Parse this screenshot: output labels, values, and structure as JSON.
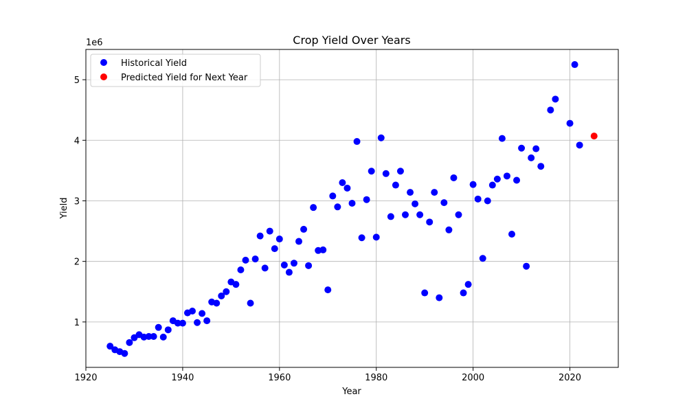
{
  "chart_data": {
    "type": "scatter",
    "title": "Crop Yield Over Years",
    "xlabel": "Year",
    "ylabel": "Yield",
    "y_scale_label": "1e6",
    "xlim": [
      1920,
      2030
    ],
    "ylim": [
      0.25,
      5.5
    ],
    "x_ticks": [
      1920,
      1940,
      1960,
      1980,
      2000,
      2020
    ],
    "y_ticks": [
      1,
      2,
      3,
      4,
      5
    ],
    "grid": true,
    "legend_position": "top-left",
    "series": [
      {
        "name": "Historical Yield",
        "color": "#0000ff",
        "points": [
          [
            1925,
            0.6
          ],
          [
            1926,
            0.54
          ],
          [
            1927,
            0.51
          ],
          [
            1928,
            0.48
          ],
          [
            1929,
            0.66
          ],
          [
            1930,
            0.74
          ],
          [
            1931,
            0.79
          ],
          [
            1932,
            0.75
          ],
          [
            1933,
            0.76
          ],
          [
            1934,
            0.76
          ],
          [
            1935,
            0.91
          ],
          [
            1936,
            0.75
          ],
          [
            1937,
            0.87
          ],
          [
            1938,
            1.02
          ],
          [
            1939,
            0.98
          ],
          [
            1940,
            0.98
          ],
          [
            1941,
            1.15
          ],
          [
            1942,
            1.18
          ],
          [
            1943,
            0.99
          ],
          [
            1944,
            1.14
          ],
          [
            1945,
            1.02
          ],
          [
            1946,
            1.33
          ],
          [
            1947,
            1.31
          ],
          [
            1948,
            1.43
          ],
          [
            1949,
            1.5
          ],
          [
            1950,
            1.66
          ],
          [
            1951,
            1.62
          ],
          [
            1952,
            1.86
          ],
          [
            1953,
            2.02
          ],
          [
            1954,
            1.31
          ],
          [
            1955,
            2.04
          ],
          [
            1956,
            2.42
          ],
          [
            1957,
            1.89
          ],
          [
            1958,
            2.5
          ],
          [
            1959,
            2.21
          ],
          [
            1960,
            2.37
          ],
          [
            1961,
            1.94
          ],
          [
            1962,
            1.82
          ],
          [
            1963,
            1.97
          ],
          [
            1964,
            2.33
          ],
          [
            1965,
            2.53
          ],
          [
            1966,
            1.93
          ],
          [
            1967,
            2.89
          ],
          [
            1968,
            2.18
          ],
          [
            1969,
            2.19
          ],
          [
            1970,
            1.53
          ],
          [
            1971,
            3.08
          ],
          [
            1972,
            2.9
          ],
          [
            1973,
            3.3
          ],
          [
            1974,
            3.21
          ],
          [
            1975,
            2.96
          ],
          [
            1976,
            3.98
          ],
          [
            1977,
            2.39
          ],
          [
            1978,
            3.02
          ],
          [
            1979,
            3.49
          ],
          [
            1980,
            2.4
          ],
          [
            1981,
            4.04
          ],
          [
            1982,
            3.45
          ],
          [
            1983,
            2.74
          ],
          [
            1984,
            3.26
          ],
          [
            1985,
            3.49
          ],
          [
            1986,
            2.77
          ],
          [
            1987,
            3.14
          ],
          [
            1988,
            2.95
          ],
          [
            1989,
            2.77
          ],
          [
            1990,
            1.48
          ],
          [
            1991,
            2.65
          ],
          [
            1992,
            3.14
          ],
          [
            1993,
            1.4
          ],
          [
            1994,
            2.97
          ],
          [
            1995,
            2.52
          ],
          [
            1996,
            3.38
          ],
          [
            1997,
            2.77
          ],
          [
            1998,
            1.48
          ],
          [
            1999,
            1.62
          ],
          [
            2000,
            3.27
          ],
          [
            2001,
            3.03
          ],
          [
            2002,
            2.05
          ],
          [
            2003,
            3.0
          ],
          [
            2004,
            3.26
          ],
          [
            2005,
            3.36
          ],
          [
            2006,
            4.03
          ],
          [
            2007,
            3.41
          ],
          [
            2008,
            2.45
          ],
          [
            2009,
            3.34
          ],
          [
            2010,
            3.87
          ],
          [
            2011,
            1.92
          ],
          [
            2012,
            3.71
          ],
          [
            2013,
            3.86
          ],
          [
            2014,
            3.57
          ],
          [
            2016,
            4.5
          ],
          [
            2017,
            4.68
          ],
          [
            2020,
            4.28
          ],
          [
            2021,
            5.25
          ],
          [
            2022,
            3.92
          ]
        ]
      },
      {
        "name": "Predicted Yield for Next Year",
        "color": "#ff0000",
        "points": [
          [
            2025,
            4.07
          ]
        ]
      }
    ]
  }
}
